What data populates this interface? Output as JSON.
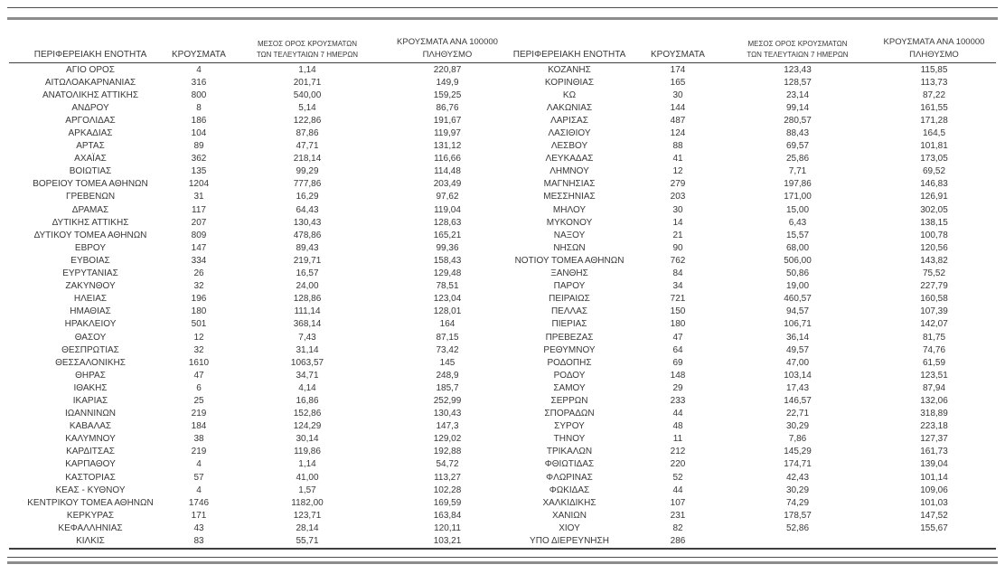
{
  "colors": {
    "text": "#383838",
    "rule_dark": "#3f3f3f",
    "rule_mid": "#4d4d4d",
    "rule_gray": "#8c8c8c"
  },
  "table": {
    "header": {
      "region": "ΠΕΡΙΦΕΡΕΙΑΚΗ ΕΝΟΤΗΤΑ",
      "cases": "ΚΡΟΥΣΜΑΤΑ",
      "avg7_line1": "ΜΕΣΟΣ ΟΡΟΣ ΚΡΟΥΣΜΑΤΩΝ",
      "avg7_line2": "ΤΩΝ ΤΕΛΕΥΤΑΙΩΝ 7 ΗΜΕΡΩΝ",
      "per100k_line1": "ΚΡΟΥΣΜΑΤΑ ΑΝΑ 100000",
      "per100k_line2": "ΠΛΗΘΥΣΜΟ"
    },
    "left_rows": [
      [
        "ΑΓΙΟ ΟΡΟΣ",
        "4",
        "1,14",
        "220,87"
      ],
      [
        "ΑΙΤΩΛΟΑΚΑΡΝΑΝΙΑΣ",
        "316",
        "201,71",
        "149,9"
      ],
      [
        "ΑΝΑΤΟΛΙΚΗΣ ΑΤΤΙΚΗΣ",
        "800",
        "540,00",
        "159,25"
      ],
      [
        "ΑΝΔΡΟΥ",
        "8",
        "5,14",
        "86,76"
      ],
      [
        "ΑΡΓΟΛΙΔΑΣ",
        "186",
        "122,86",
        "191,67"
      ],
      [
        "ΑΡΚΑΔΙΑΣ",
        "104",
        "87,86",
        "119,97"
      ],
      [
        "ΑΡΤΑΣ",
        "89",
        "47,71",
        "131,12"
      ],
      [
        "ΑΧΑΪΑΣ",
        "362",
        "218,14",
        "116,66"
      ],
      [
        "ΒΟΙΩΤΙΑΣ",
        "135",
        "99,29",
        "114,48"
      ],
      [
        "ΒΟΡΕΙΟΥ ΤΟΜΕΑ ΑΘΗΝΩΝ",
        "1204",
        "777,86",
        "203,49"
      ],
      [
        "ΓΡΕΒΕΝΩΝ",
        "31",
        "16,29",
        "97,62"
      ],
      [
        "ΔΡΑΜΑΣ",
        "117",
        "64,43",
        "119,04"
      ],
      [
        "ΔΥΤΙΚΗΣ ΑΤΤΙΚΗΣ",
        "207",
        "130,43",
        "128,63"
      ],
      [
        "ΔΥΤΙΚΟΥ ΤΟΜΕΑ ΑΘΗΝΩΝ",
        "809",
        "478,86",
        "165,21"
      ],
      [
        "ΕΒΡΟΥ",
        "147",
        "89,43",
        "99,36"
      ],
      [
        "ΕΥΒΟΙΑΣ",
        "334",
        "219,71",
        "158,43"
      ],
      [
        "ΕΥΡΥΤΑΝΙΑΣ",
        "26",
        "16,57",
        "129,48"
      ],
      [
        "ΖΑΚΥΝΘΟΥ",
        "32",
        "24,00",
        "78,51"
      ],
      [
        "ΗΛΕΙΑΣ",
        "196",
        "128,86",
        "123,04"
      ],
      [
        "ΗΜΑΘΙΑΣ",
        "180",
        "111,14",
        "128,01"
      ],
      [
        "ΗΡΑΚΛΕΙΟΥ",
        "501",
        "368,14",
        "164"
      ],
      [
        "ΘΑΣΟΥ",
        "12",
        "7,43",
        "87,15"
      ],
      [
        "ΘΕΣΠΡΩΤΙΑΣ",
        "32",
        "31,14",
        "73,42"
      ],
      [
        "ΘΕΣΣΑΛΟΝΙΚΗΣ",
        "1610",
        "1063,57",
        "145"
      ],
      [
        "ΘΗΡΑΣ",
        "47",
        "34,71",
        "248,9"
      ],
      [
        "ΙΘΑΚΗΣ",
        "6",
        "4,14",
        "185,7"
      ],
      [
        "ΙΚΑΡΙΑΣ",
        "25",
        "16,86",
        "252,99"
      ],
      [
        "ΙΩΑΝΝΙΝΩΝ",
        "219",
        "152,86",
        "130,43"
      ],
      [
        "ΚΑΒΑΛΑΣ",
        "184",
        "124,29",
        "147,3"
      ],
      [
        "ΚΑΛΥΜΝΟΥ",
        "38",
        "30,14",
        "129,02"
      ],
      [
        "ΚΑΡΔΙΤΣΑΣ",
        "219",
        "119,86",
        "192,88"
      ],
      [
        "ΚΑΡΠΑΘΟΥ",
        "4",
        "1,14",
        "54,72"
      ],
      [
        "ΚΑΣΤΟΡΙΑΣ",
        "57",
        "41,00",
        "113,27"
      ],
      [
        "ΚΕΑΣ - ΚΥΘΝΟΥ",
        "4",
        "1,57",
        "102,28"
      ],
      [
        "ΚΕΝΤΡΙΚΟΥ ΤΟΜΕΑ ΑΘΗΝΩΝ",
        "1746",
        "1182,00",
        "169,59"
      ],
      [
        "ΚΕΡΚΥΡΑΣ",
        "171",
        "123,71",
        "163,84"
      ],
      [
        "ΚΕΦΑΛΛΗΝΙΑΣ",
        "43",
        "28,14",
        "120,11"
      ],
      [
        "ΚΙΛΚΙΣ",
        "83",
        "55,71",
        "103,21"
      ]
    ],
    "right_rows": [
      [
        "ΚΟΖΑΝΗΣ",
        "174",
        "123,43",
        "115,85"
      ],
      [
        "ΚΟΡΙΝΘΙΑΣ",
        "165",
        "128,57",
        "113,73"
      ],
      [
        "ΚΩ",
        "30",
        "23,14",
        "87,22"
      ],
      [
        "ΛΑΚΩΝΙΑΣ",
        "144",
        "99,14",
        "161,55"
      ],
      [
        "ΛΑΡΙΣΑΣ",
        "487",
        "280,57",
        "171,28"
      ],
      [
        "ΛΑΣΙΘΙΟΥ",
        "124",
        "88,43",
        "164,5"
      ],
      [
        "ΛΕΣΒΟΥ",
        "88",
        "69,57",
        "101,81"
      ],
      [
        "ΛΕΥΚΑΔΑΣ",
        "41",
        "25,86",
        "173,05"
      ],
      [
        "ΛΗΜΝΟΥ",
        "12",
        "7,71",
        "69,52"
      ],
      [
        "ΜΑΓΝΗΣΙΑΣ",
        "279",
        "197,86",
        "146,83"
      ],
      [
        "ΜΕΣΣΗΝΙΑΣ",
        "203",
        "171,00",
        "126,91"
      ],
      [
        "ΜΗΛΟΥ",
        "30",
        "15,00",
        "302,05"
      ],
      [
        "ΜΥΚΟΝΟΥ",
        "14",
        "6,43",
        "138,15"
      ],
      [
        "ΝΑΞΟΥ",
        "21",
        "15,57",
        "100,78"
      ],
      [
        "ΝΗΣΩΝ",
        "90",
        "68,00",
        "120,56"
      ],
      [
        "ΝΟΤΙΟΥ ΤΟΜΕΑ ΑΘΗΝΩΝ",
        "762",
        "506,00",
        "143,82"
      ],
      [
        "ΞΑΝΘΗΣ",
        "84",
        "50,86",
        "75,52"
      ],
      [
        "ΠΑΡΟΥ",
        "34",
        "19,00",
        "227,79"
      ],
      [
        "ΠΕΙΡΑΙΩΣ",
        "721",
        "460,57",
        "160,58"
      ],
      [
        "ΠΕΛΛΑΣ",
        "150",
        "94,57",
        "107,39"
      ],
      [
        "ΠΙΕΡΙΑΣ",
        "180",
        "106,71",
        "142,07"
      ],
      [
        "ΠΡΕΒΕΖΑΣ",
        "47",
        "36,14",
        "81,75"
      ],
      [
        "ΡΕΘΥΜΝΟΥ",
        "64",
        "49,57",
        "74,76"
      ],
      [
        "ΡΟΔΟΠΗΣ",
        "69",
        "47,00",
        "61,59"
      ],
      [
        "ΡΟΔΟΥ",
        "148",
        "103,14",
        "123,51"
      ],
      [
        "ΣΑΜΟΥ",
        "29",
        "17,43",
        "87,94"
      ],
      [
        "ΣΕΡΡΩΝ",
        "233",
        "146,57",
        "132,06"
      ],
      [
        "ΣΠΟΡΑΔΩΝ",
        "44",
        "22,71",
        "318,89"
      ],
      [
        "ΣΥΡΟΥ",
        "48",
        "30,29",
        "223,18"
      ],
      [
        "ΤΗΝΟΥ",
        "11",
        "7,86",
        "127,37"
      ],
      [
        "ΤΡΙΚΑΛΩΝ",
        "212",
        "145,29",
        "161,73"
      ],
      [
        "ΦΘΙΩΤΙΔΑΣ",
        "220",
        "174,71",
        "139,04"
      ],
      [
        "ΦΛΩΡΙΝΑΣ",
        "52",
        "42,43",
        "101,14"
      ],
      [
        "ΦΩΚΙΔΑΣ",
        "44",
        "30,29",
        "109,06"
      ],
      [
        "ΧΑΛΚΙΔΙΚΗΣ",
        "107",
        "74,29",
        "101,03"
      ],
      [
        "ΧΑΝΙΩΝ",
        "231",
        "178,57",
        "147,52"
      ],
      [
        "ΧΙΟΥ",
        "82",
        "52,86",
        "155,67"
      ],
      [
        "ΥΠΟ ΔΙΕΡΕΥΝΗΣΗ",
        "286",
        "",
        ""
      ]
    ]
  }
}
